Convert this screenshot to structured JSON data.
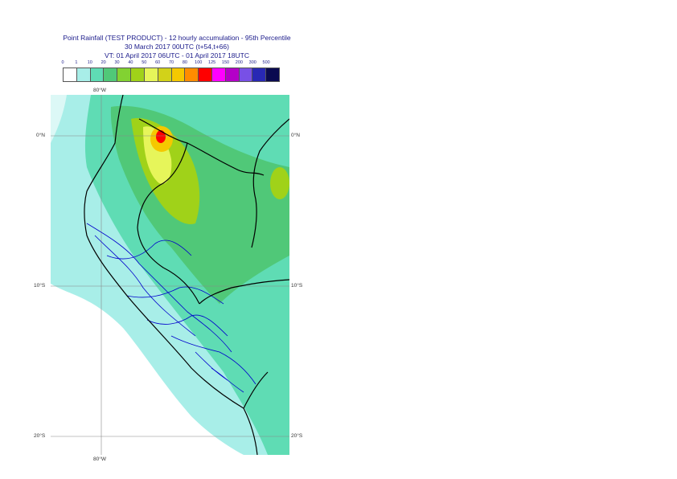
{
  "title": {
    "line1": "Point Rainfall (TEST PRODUCT) - 12 hourly accumulation - 95th Percentile",
    "line2": "30 March 2017 00UTC (t+54,t+66)",
    "line3": "VT: 01 April 2017 06UTC - 01 April 2017 18UTC"
  },
  "legend": {
    "ticks": [
      "0",
      "1",
      "10",
      "20",
      "30",
      "40",
      "50",
      "60",
      "70",
      "80",
      "100",
      "125",
      "150",
      "200",
      "300",
      "500"
    ],
    "colors": [
      "#ffffff",
      "#a8eee8",
      "#5fdcb4",
      "#50c878",
      "#82d232",
      "#a0d219",
      "#e6f55a",
      "#d2d219",
      "#f5c800",
      "#ff8c00",
      "#ff0000",
      "#ff00ff",
      "#b400c8",
      "#7850e6",
      "#2828b4",
      "#0a0a50"
    ]
  },
  "map": {
    "lat_labels": [
      "0°N",
      "10°S",
      "20°S"
    ],
    "lon_label": "80°W",
    "colors": {
      "background": "#ffffff",
      "light": "#a8eee8",
      "medium": "#5fdcb4",
      "green": "#50c878",
      "lime": "#a0d219",
      "yellow": "#e6f55a",
      "orange": "#f5c800",
      "red": "#ff0000",
      "border": "#000000",
      "admin": "#0000cc",
      "grid": "#888888"
    }
  }
}
